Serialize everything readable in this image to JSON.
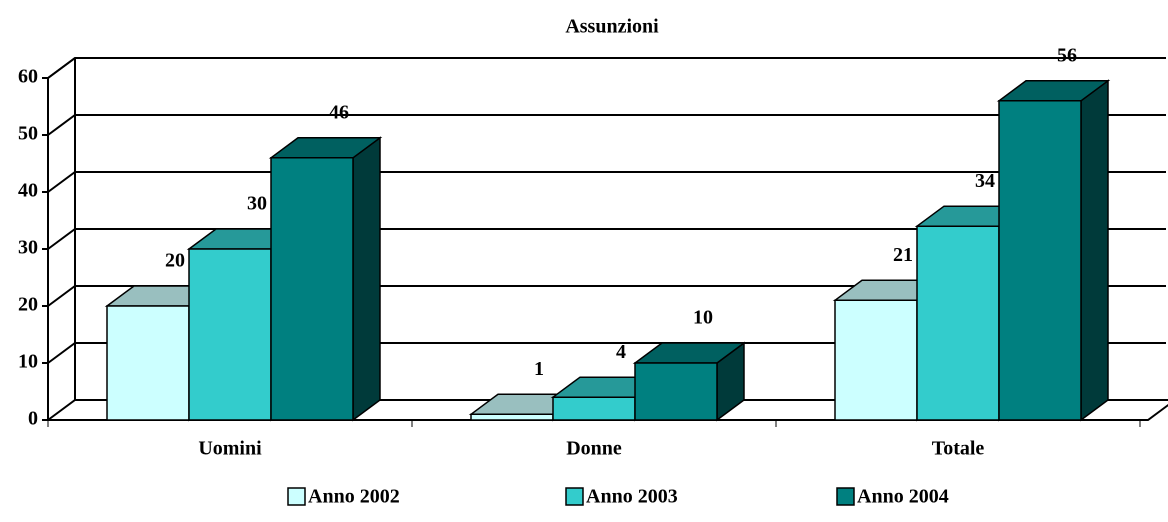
{
  "chart_data": {
    "type": "bar3d",
    "title": "Assunzioni",
    "categories": [
      "Uomini",
      "Donne",
      "Totale"
    ],
    "series": [
      {
        "name": "Anno 2002",
        "color": "#ccffff",
        "values": [
          20,
          1,
          21
        ]
      },
      {
        "name": "Anno 2003",
        "color": "#33cccc",
        "values": [
          30,
          4,
          34
        ]
      },
      {
        "name": "Anno 2004",
        "color": "#008080",
        "values": [
          46,
          10,
          56
        ]
      }
    ],
    "ylim": [
      0,
      60
    ],
    "yticks": [
      0,
      10,
      20,
      30,
      40,
      50,
      60
    ],
    "grid": true,
    "legend": "bottom"
  }
}
